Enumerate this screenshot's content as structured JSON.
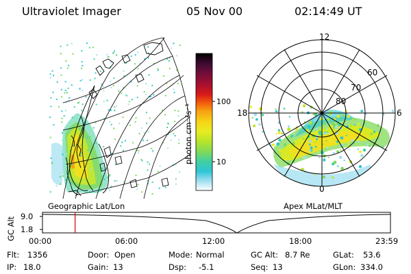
{
  "header": {
    "instrument": "Ultraviolet Imager",
    "date": "05 Nov 00",
    "time": "02:14:49 UT"
  },
  "left_panel": {
    "label": "Geographic Lat/Lon"
  },
  "right_panel": {
    "label": "Apex MLat/MLT",
    "mlt_labels": {
      "top": "12",
      "left": "18",
      "right": "6",
      "bottom": "0"
    },
    "lat_labels": [
      "60",
      "70",
      "80"
    ]
  },
  "colorbar": {
    "unit_label": "photon cm⁻²s⁻¹",
    "tick_labels": [
      "100",
      "10"
    ],
    "colors": [
      "#000000",
      "#3a0b2e",
      "#6d0d3a",
      "#a30f30",
      "#d81a1a",
      "#f35a0c",
      "#f7a012",
      "#f6d516",
      "#e8ec22",
      "#b8e528",
      "#7fd95a",
      "#40cfa3",
      "#2ec5d5",
      "#9fdff0",
      "#ffffff"
    ]
  },
  "timeline": {
    "y_axis_label": "GC Alt",
    "y_ticks": [
      "9.0",
      "1.8"
    ],
    "x_ticks": [
      "00:00",
      "06:00",
      "12:00",
      "18:00",
      "23:59"
    ],
    "current_time_hours": 2.25
  },
  "info": {
    "flt": {
      "label": "Flt:",
      "value": "1356"
    },
    "ip": {
      "label": "IP:",
      "value": "18.0"
    },
    "door": {
      "label": "Door:",
      "value": "Open"
    },
    "gain": {
      "label": "Gain:",
      "value": "13"
    },
    "mode": {
      "label": "Mode:",
      "value": "Normal"
    },
    "dsp": {
      "label": "Dsp:",
      "value": "-5.1"
    },
    "gcalt": {
      "label": "GC Alt:",
      "value": "8.7 Re"
    },
    "seq": {
      "label": "Seq:",
      "value": "13"
    },
    "glat": {
      "label": "GLat:",
      "value": "53.6"
    },
    "glon": {
      "label": "GLon:",
      "value": "334.0"
    }
  }
}
